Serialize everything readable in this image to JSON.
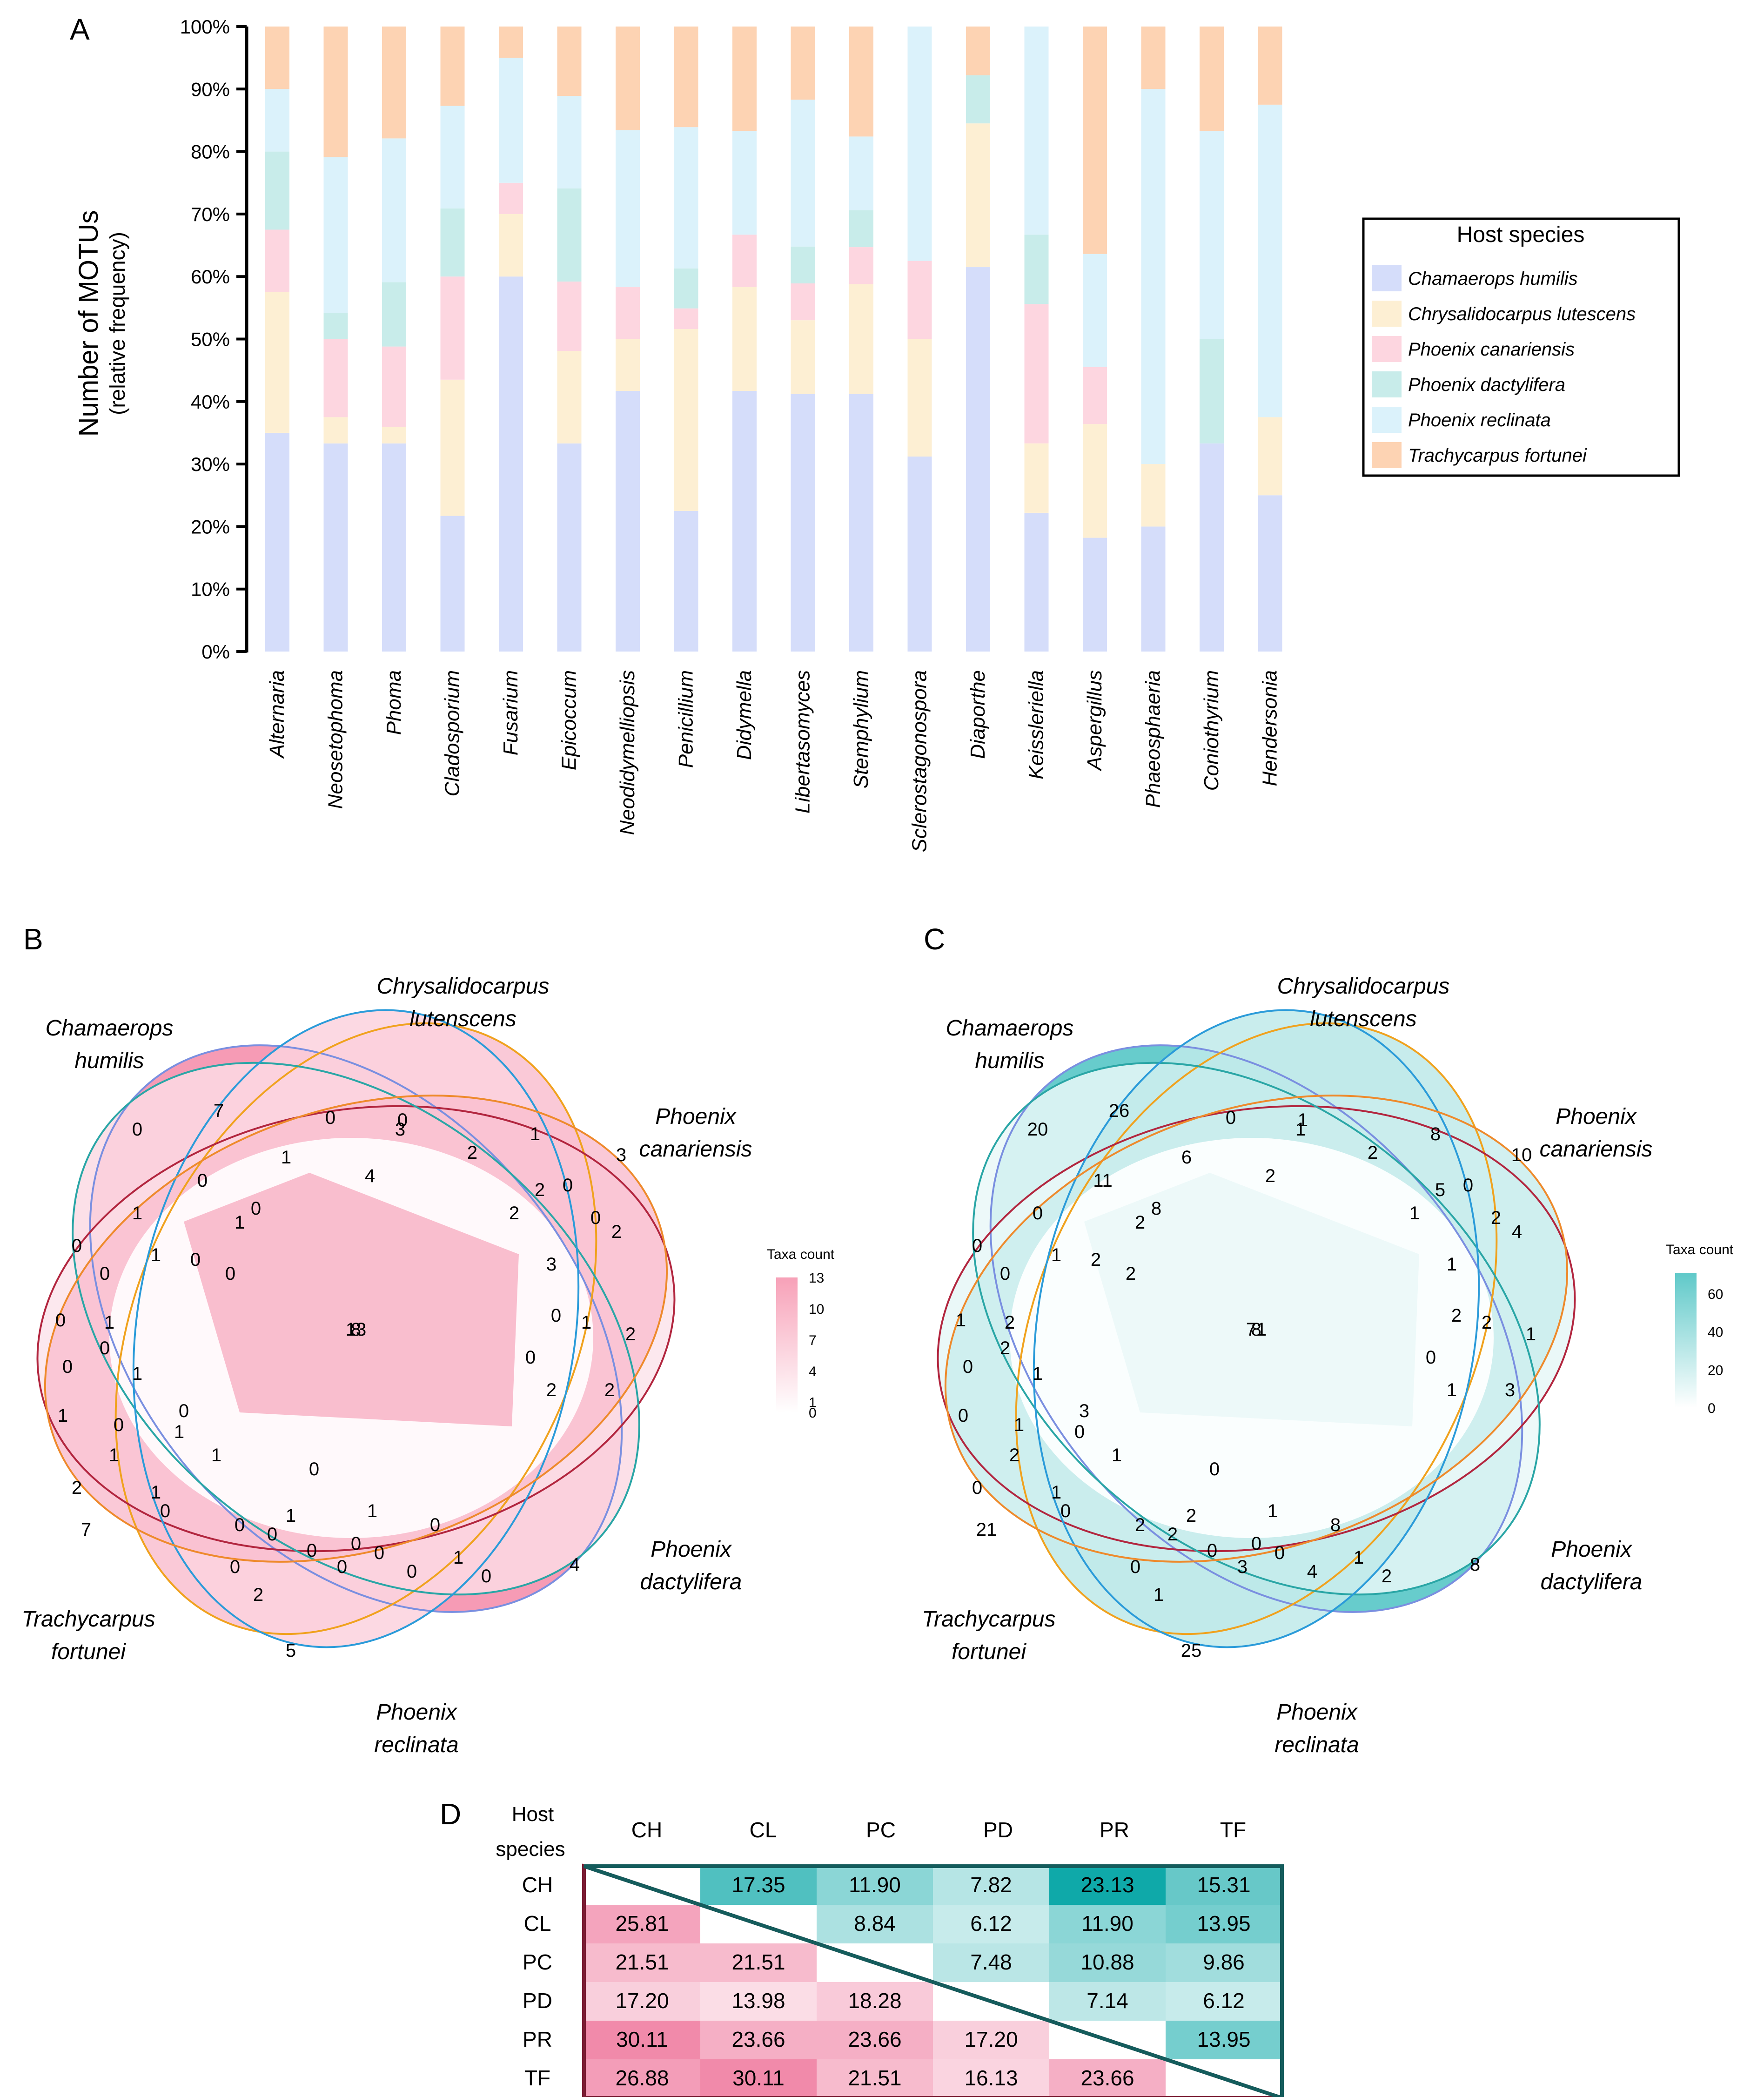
{
  "panels": {
    "a": "A",
    "b": "B",
    "c": "C",
    "d": "D"
  },
  "colors": {
    "Chamaerops humilis": "#d5ddfa",
    "Chrysalidocarpus lutescens": "#fdefd3",
    "Phoenix canariensis": "#fdd6e0",
    "Phoenix dactylifera": "#c8ecea",
    "Phoenix reclinata": "#dbf2fb",
    "Trachycarpus fortunei": "#fdd3b3"
  },
  "chart_data": [
    {
      "type": "bar",
      "stacked": true,
      "title": "",
      "ylabel": "Number of MOTUs",
      "ylabel_sub": "(relative frequency)",
      "ylim": [
        0,
        100
      ],
      "yticks": [
        "0%",
        "10%",
        "20%",
        "30%",
        "40%",
        "50%",
        "60%",
        "70%",
        "80%",
        "90%",
        "100%"
      ],
      "legend_title": "Host species",
      "legend_position": "right",
      "categories": [
        "Alternaria",
        "Neosetophoma",
        "Phoma",
        "Cladosporium",
        "Fusarium",
        "Epicoccum",
        "Neodidymelliopsis",
        "Penicillium",
        "Didymella",
        "Libertasomyces",
        "Stemphylium",
        "Sclerostagonospora",
        "Diaporthe",
        "Keissleriella",
        "Aspergillus",
        "Phaeosphaeria",
        "Coniothyrium",
        "Hendersonia"
      ],
      "series": [
        {
          "name": "Chamaerops humilis",
          "values": [
            35,
            33.3,
            33.3,
            21.7,
            60,
            33.3,
            41.7,
            22.5,
            41.7,
            41.2,
            41.2,
            31.2,
            61.5,
            22.2,
            18.2,
            20,
            33.3,
            25
          ]
        },
        {
          "name": "Chrysalidocarpus lutescens",
          "values": [
            22.5,
            4.2,
            2.6,
            21.8,
            10,
            14.8,
            8.3,
            29.1,
            16.6,
            11.8,
            17.6,
            18.8,
            23,
            11.1,
            18.2,
            10,
            0,
            12.5
          ]
        },
        {
          "name": "Phoenix canariensis",
          "values": [
            10,
            12.5,
            12.9,
            16.5,
            5,
            11.1,
            8.3,
            3.3,
            8.4,
            5.9,
            5.9,
            12.5,
            0,
            22.3,
            9.1,
            0,
            0,
            0
          ]
        },
        {
          "name": "Phoenix dactylifera",
          "values": [
            12.5,
            4.2,
            10.3,
            10.9,
            0,
            14.9,
            0,
            6.4,
            0,
            5.9,
            5.9,
            0,
            7.7,
            11.1,
            0,
            0,
            16.7,
            0
          ]
        },
        {
          "name": "Phoenix reclinata",
          "values": [
            10,
            24.9,
            23,
            16.4,
            20,
            14.8,
            25.1,
            22.6,
            16.6,
            23.5,
            11.8,
            37.5,
            0,
            33.3,
            18.1,
            60,
            33.3,
            50
          ]
        },
        {
          "name": "Trachycarpus fortunei",
          "values": [
            10,
            20.9,
            17.9,
            12.7,
            5,
            11.1,
            16.6,
            16.1,
            16.7,
            11.7,
            17.6,
            0,
            7.8,
            0,
            36.4,
            10,
            16.7,
            12.5
          ]
        }
      ]
    },
    {
      "type": "venn",
      "panel": "B",
      "sets": [
        "Chamaerops humilis",
        "Chrysalidocarpus lutenscens",
        "Phoenix canariensis",
        "Phoenix dactylifera",
        "Phoenix reclinata",
        "Trachycarpus fortunei"
      ],
      "set_labels": [
        [
          "Chamaerops",
          "humilis"
        ],
        [
          "Chrysalidocarpus",
          "lutenscens"
        ],
        [
          "Phoenix",
          "canariensis"
        ],
        [
          "Phoenix",
          "dactylifera"
        ],
        [
          "Phoenix",
          "reclinata"
        ],
        [
          "Trachycarpus",
          "fortunei"
        ]
      ],
      "legend_title": "Taxa count",
      "legend_ticks": [
        "13",
        "10",
        "7",
        "4",
        "1",
        "0"
      ],
      "legend_range": [
        0,
        13
      ],
      "center_value": 8,
      "region_counts": [
        13,
        7,
        3,
        4,
        5,
        7,
        0,
        0,
        0,
        1,
        4,
        3,
        2,
        2,
        3,
        1,
        1,
        0,
        0,
        1,
        0,
        0,
        2,
        0,
        2,
        0,
        0,
        1,
        2,
        0,
        2,
        2,
        0,
        0,
        0,
        1,
        1,
        0,
        0,
        1,
        1,
        0,
        0,
        1,
        1,
        0,
        0,
        1,
        0,
        0,
        2,
        0,
        0,
        0,
        1,
        0,
        0,
        0,
        1,
        0,
        2,
        1,
        1,
        0
      ]
    },
    {
      "type": "venn",
      "panel": "C",
      "sets": [
        "Chamaerops humilis",
        "Chrysalidocarpus lutenscens",
        "Phoenix canariensis",
        "Phoenix dactylifera",
        "Phoenix reclinata",
        "Trachycarpus fortunei"
      ],
      "set_labels": [
        [
          "Chamaerops",
          "humilis"
        ],
        [
          "Chrysalidocarpus",
          "lutenscens"
        ],
        [
          "Phoenix",
          "canariensis"
        ],
        [
          "Phoenix",
          "dactylifera"
        ],
        [
          "Phoenix",
          "reclinata"
        ],
        [
          "Trachycarpus",
          "fortunei"
        ]
      ],
      "legend_title": "Taxa count",
      "legend_ticks": [
        "60",
        "40",
        "20",
        "0"
      ],
      "legend_range": [
        0,
        71
      ],
      "center_value": 8,
      "region_counts": [
        71,
        26,
        10,
        8,
        25,
        21,
        20,
        11,
        8,
        6,
        2,
        1,
        2,
        1,
        1,
        8,
        0,
        2,
        2,
        2,
        1,
        0,
        5,
        0,
        4,
        2,
        2,
        2,
        1,
        0,
        1,
        3,
        0,
        0,
        1,
        2,
        1,
        0,
        2,
        1,
        0,
        1,
        3,
        0,
        1,
        0,
        2,
        2,
        0,
        0,
        1,
        2,
        3,
        0,
        1,
        0,
        4,
        8,
        1,
        2,
        0,
        2,
        1,
        0
      ]
    },
    {
      "type": "table",
      "panel": "D",
      "corner": [
        "Host",
        "species"
      ],
      "columns": [
        "CH",
        "CL",
        "PC",
        "PD",
        "PR",
        "TF"
      ],
      "rows": [
        "CH",
        "CL",
        "PC",
        "PD",
        "PR",
        "TF"
      ],
      "upper": [
        [
          "",
          "17.35",
          "11.90",
          "7.82",
          "23.13",
          "15.31"
        ],
        [
          "",
          "",
          "8.84",
          "6.12",
          "11.90",
          "13.95"
        ],
        [
          "",
          "",
          "",
          "7.48",
          "10.88",
          "9.86"
        ],
        [
          "",
          "",
          "",
          "",
          "7.14",
          "6.12"
        ],
        [
          "",
          "",
          "",
          "",
          "",
          "13.95"
        ],
        [
          "",
          "",
          "",
          "",
          "",
          ""
        ]
      ],
      "lower": [
        [
          "",
          "",
          "",
          "",
          "",
          ""
        ],
        [
          "25.81",
          "",
          "",
          "",
          "",
          ""
        ],
        [
          "21.51",
          "21.51",
          "",
          "",
          "",
          ""
        ],
        [
          "17.20",
          "13.98",
          "18.28",
          "",
          "",
          ""
        ],
        [
          "30.11",
          "23.66",
          "23.66",
          "17.20",
          "",
          ""
        ],
        [
          "26.88",
          "30.11",
          "21.51",
          "16.13",
          "23.66",
          ""
        ]
      ]
    }
  ]
}
